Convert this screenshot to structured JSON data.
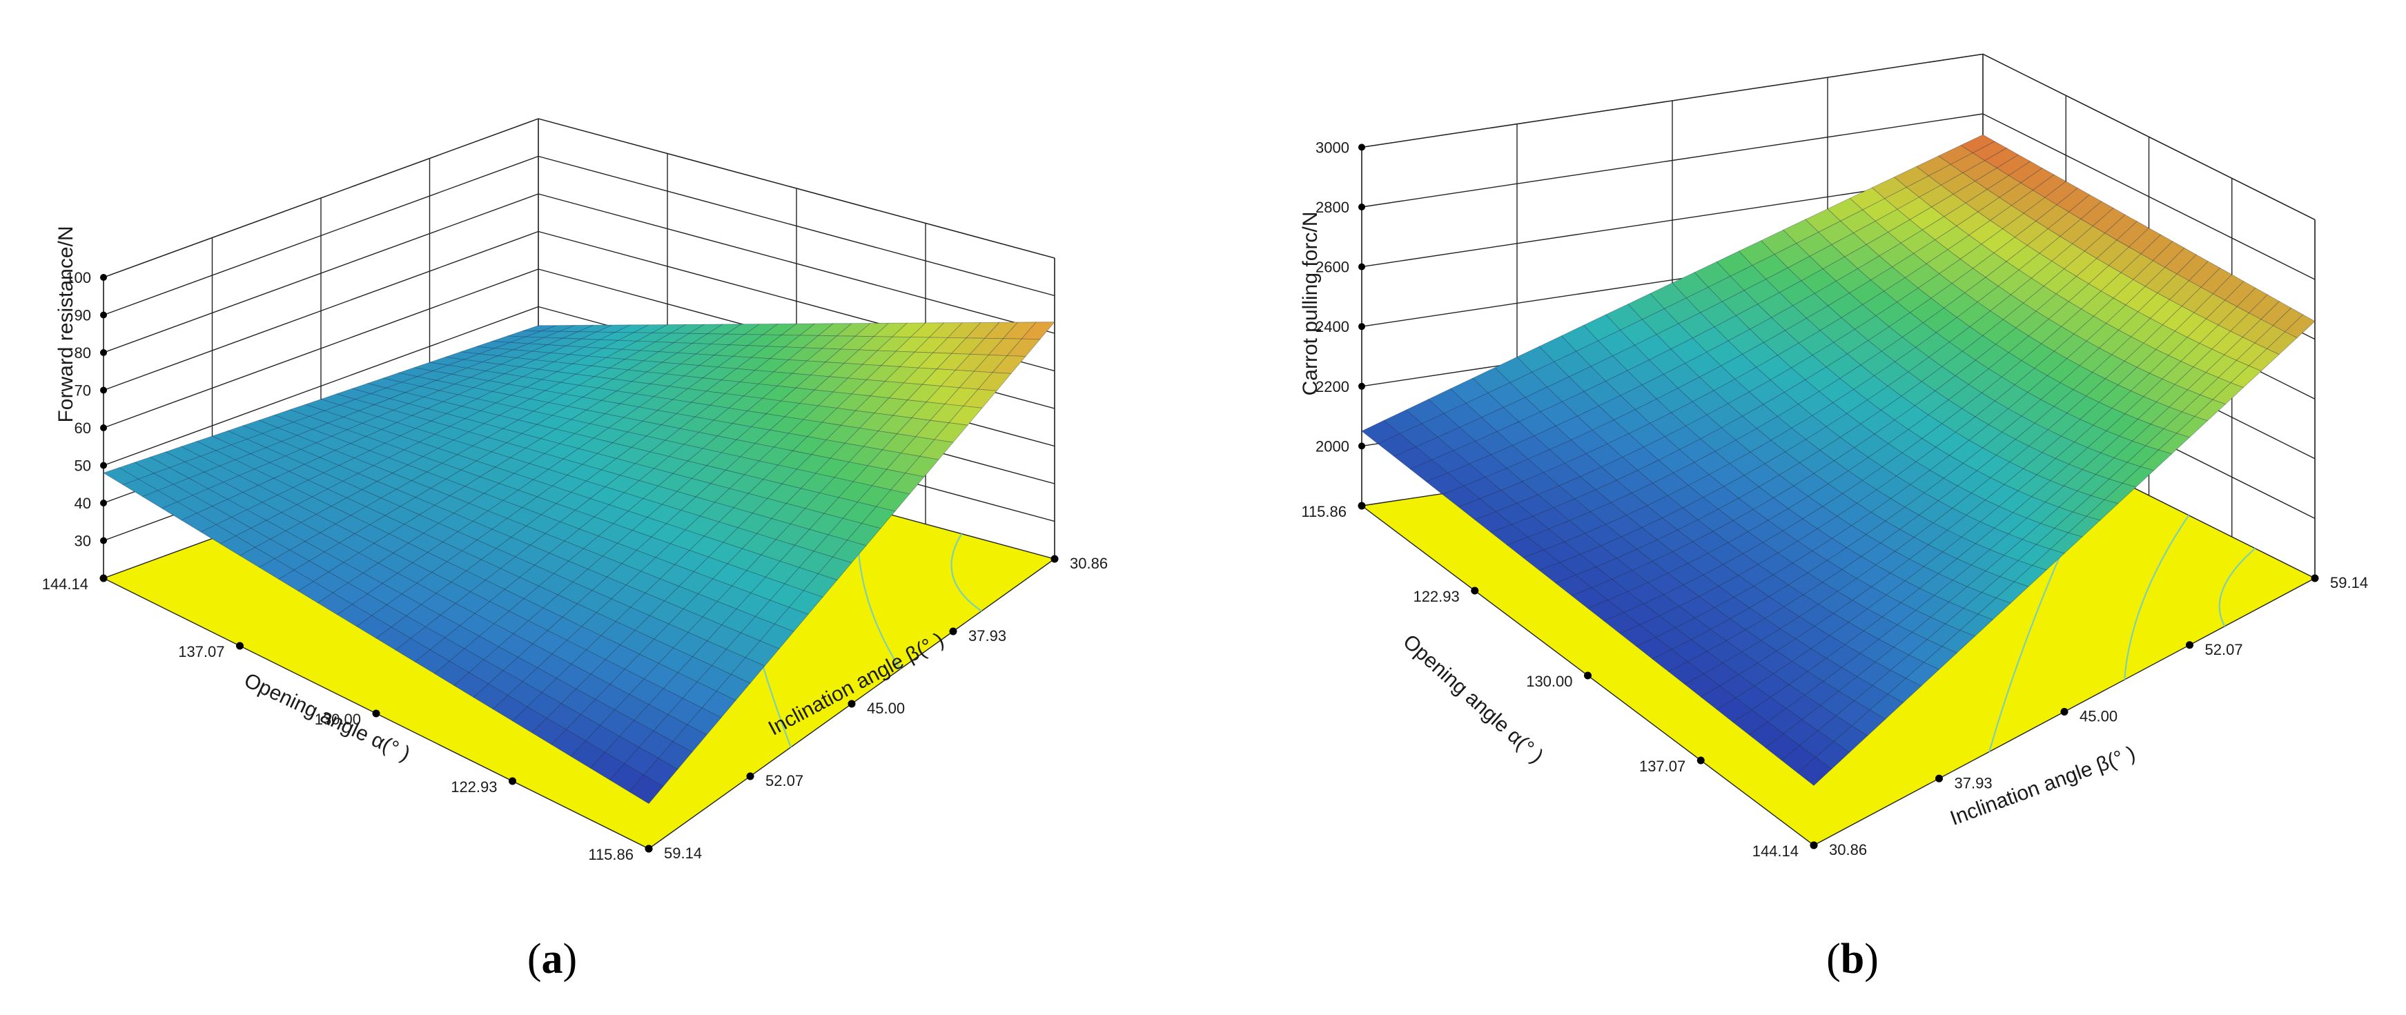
{
  "chart_data": [
    {
      "type": "surface3d",
      "panel_label": "a",
      "zlabel": "Forward resistance/N",
      "xlabel": "Opening angle α(° )",
      "ylabel": "Inclination angle β(° )",
      "x_ticks": [
        "144.14",
        "137.07",
        "130.00",
        "122.93",
        "115.86"
      ],
      "y_ticks": [
        "59.14",
        "52.07",
        "45.00",
        "37.93",
        "30.86"
      ],
      "z_ticks": [
        "30",
        "40",
        "50",
        "60",
        "70",
        "80",
        "90",
        "100"
      ],
      "zlim": [
        20,
        100
      ],
      "corner_values": {
        "left": 48,
        "back": 45,
        "right": 83,
        "front": 32
      },
      "surface_color_scale": [
        "#2a3cad",
        "#2f7fc4",
        "#2bb3b8",
        "#4cc56a",
        "#c2d93c",
        "#e89a3a"
      ],
      "floor_color": "#f2f200"
    },
    {
      "type": "surface3d",
      "panel_label": "b",
      "zlabel": "Carrot pulling forc/N",
      "xlabel": "Opening angle α(° )",
      "ylabel": "Inclination angle β(° )",
      "x_ticks": [
        "115.86",
        "122.93",
        "130.00",
        "137.07",
        "144.14"
      ],
      "y_ticks": [
        "30.86",
        "37.93",
        "45.00",
        "52.07",
        "59.14"
      ],
      "z_ticks": [
        "2000",
        "2200",
        "2400",
        "2600",
        "2800",
        "3000"
      ],
      "zlim": [
        1800,
        3000
      ],
      "corner_values": {
        "left": 2050,
        "back": 2730,
        "right": 2660,
        "front": 2000
      },
      "surface_color_scale": [
        "#2a3cad",
        "#2f7fc4",
        "#2bb3b8",
        "#4cc56a",
        "#c2d93c",
        "#e0703a"
      ],
      "floor_color": "#f2f200"
    }
  ],
  "captions": {
    "a": "a",
    "b": "b"
  }
}
